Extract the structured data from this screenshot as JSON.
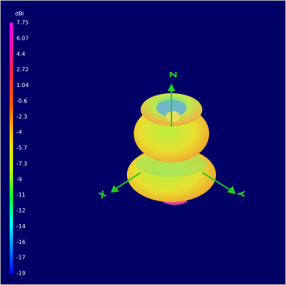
{
  "colorbar": {
    "unit": "dBi",
    "labels": [
      "7.75",
      "6.07",
      "4.4",
      "2.72",
      "1.04",
      "-0.6",
      "-2.3",
      "-4",
      "-5.7",
      "-7.3",
      "-9",
      "-11",
      "-12",
      "-14",
      "-16",
      "-17",
      "-19"
    ]
  },
  "axes": {
    "z": "Z",
    "x": "X",
    "y": "Y"
  }
}
